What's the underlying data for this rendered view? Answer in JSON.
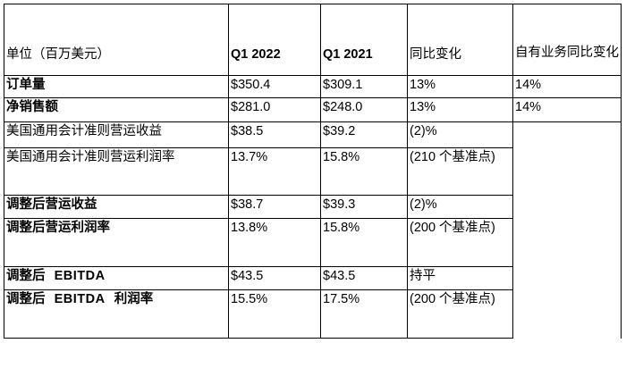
{
  "table": {
    "headers": {
      "unit": "单位（百万美元）",
      "q1_2022": "Q1 2022",
      "q1_2021": "Q1 2021",
      "yoy": "同比变化",
      "organic_yoy": "自有业务同比变化"
    },
    "rows": [
      {
        "label": "订单量",
        "bold": true,
        "q1_2022": "$350.4",
        "q1_2021": "$309.1",
        "yoy": "13%",
        "organic": "14%"
      },
      {
        "label": "净销售额",
        "bold": true,
        "q1_2022": "$281.0",
        "q1_2021": "$248.0",
        "yoy": "13%",
        "organic": "14%"
      },
      {
        "label": "美国通用会计准则营运收益",
        "bold": false,
        "q1_2022": "$38.5",
        "q1_2021": "$39.2",
        "yoy": "(2)%",
        "organic": ""
      },
      {
        "label": "美国通用会计准则营运利润率",
        "bold": false,
        "q1_2022": "13.7%",
        "q1_2021": "15.8%",
        "yoy": "(210 个基准点)",
        "organic": ""
      },
      {
        "label": "调整后营运收益",
        "bold": true,
        "q1_2022": "$38.7",
        "q1_2021": "$39.3",
        "yoy": "(2)%",
        "organic": ""
      },
      {
        "label": "调整后营运利润率",
        "bold": true,
        "q1_2022": "13.8%",
        "q1_2021": "15.8%",
        "yoy": "(200 个基准点)",
        "organic": ""
      },
      {
        "label_prefix": "调整后",
        "label_latin": "EBITDA",
        "label_suffix": "",
        "bold": true,
        "q1_2022": "$43.5",
        "q1_2021": "$43.5",
        "yoy": "持平",
        "organic": ""
      },
      {
        "label_prefix": "调整后",
        "label_latin": "EBITDA",
        "label_suffix": "利润率",
        "bold": true,
        "q1_2022": "15.5%",
        "q1_2021": "17.5%",
        "yoy": "(200 个基准点)",
        "organic": ""
      }
    ]
  }
}
